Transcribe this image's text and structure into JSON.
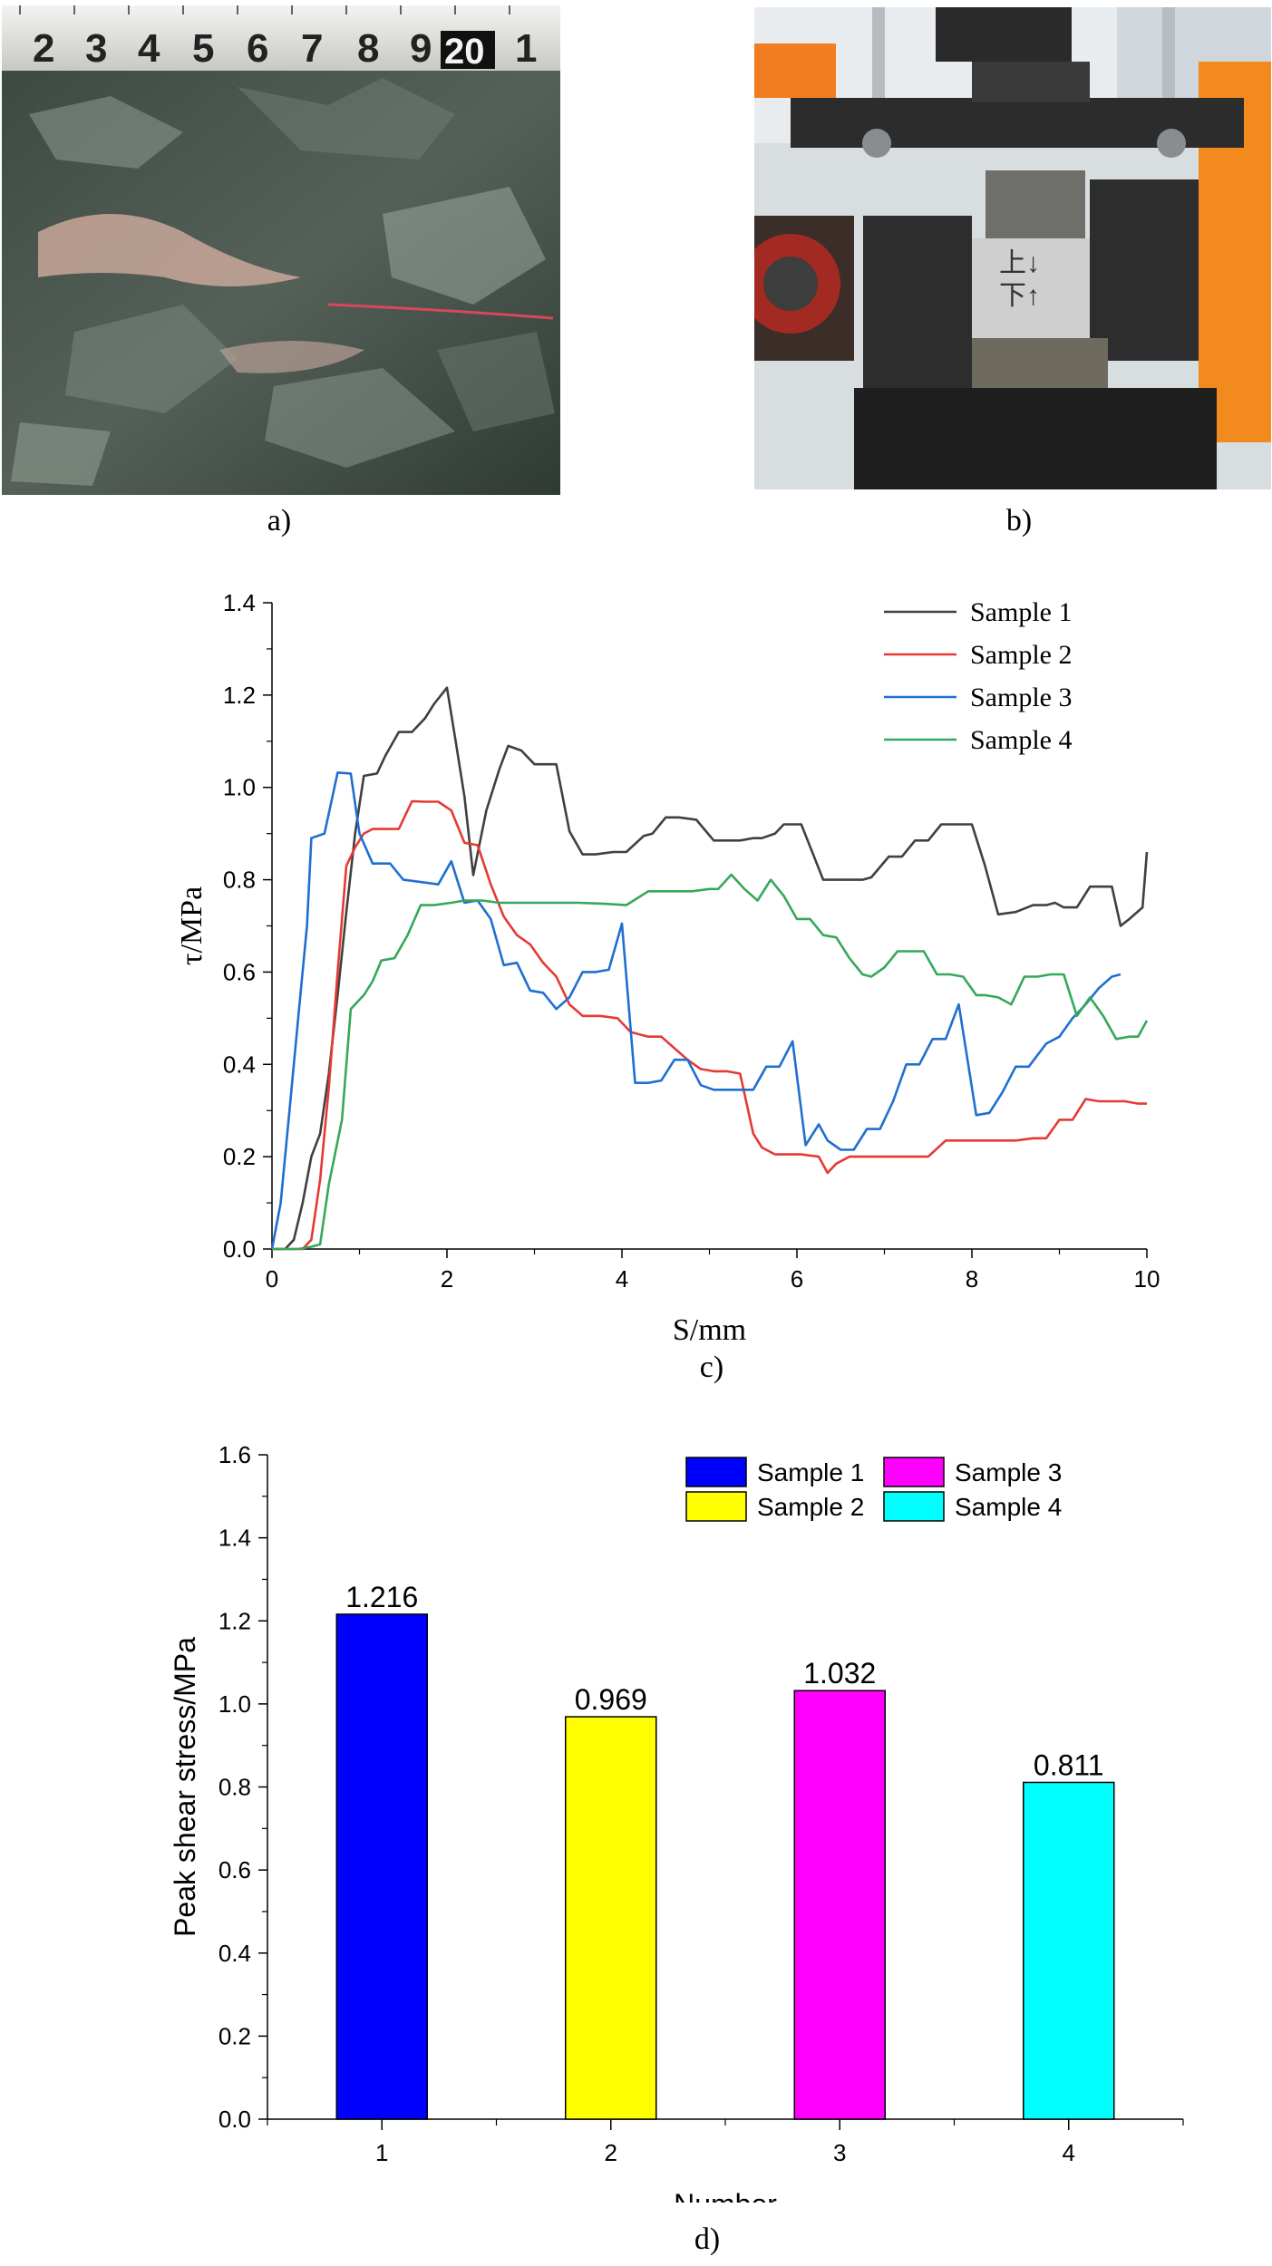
{
  "panels": {
    "a": {
      "caption": "a)",
      "ruler_numbers": [
        "2",
        "3",
        "4",
        "5",
        "6",
        "7",
        "8",
        "9",
        "20",
        "1"
      ]
    },
    "b": {
      "caption": "b)",
      "specimen_text": "上↓\n下↑"
    },
    "c": {
      "caption": "c)"
    },
    "d": {
      "caption": "d)"
    }
  },
  "chart_data": [
    {
      "id": "c",
      "type": "line",
      "xlabel": "S/mm",
      "ylabel": "τ/MPa",
      "xlim": [
        0,
        10
      ],
      "ylim": [
        0,
        1.4
      ],
      "xticks": [
        0,
        2,
        4,
        6,
        8,
        10
      ],
      "yticks": [
        0.0,
        0.2,
        0.4,
        0.6,
        0.8,
        1.0,
        1.2,
        1.4
      ],
      "legend": "top-right",
      "series": [
        {
          "name": "Sample 1",
          "color": "#404040",
          "x": [
            0,
            0.15,
            0.25,
            0.35,
            0.45,
            0.55,
            0.65,
            0.75,
            0.85,
            0.95,
            1.05,
            1.2,
            1.3,
            1.45,
            1.6,
            1.75,
            1.85,
            2.0,
            2.1,
            2.2,
            2.3,
            2.45,
            2.6,
            2.7,
            2.85,
            3.0,
            3.1,
            3.25,
            3.4,
            3.55,
            3.7,
            3.9,
            4.05,
            4.25,
            4.35,
            4.5,
            4.65,
            4.85,
            5.05,
            5.2,
            5.35,
            5.5,
            5.6,
            5.75,
            5.85,
            6.05,
            6.3,
            6.55,
            6.75,
            6.85,
            7.05,
            7.2,
            7.35,
            7.5,
            7.65,
            7.75,
            7.85,
            8.0,
            8.15,
            8.3,
            8.5,
            8.7,
            8.85,
            8.95,
            9.05,
            9.2,
            9.35,
            9.5,
            9.6,
            9.7,
            9.8,
            9.95,
            10.0
          ],
          "y": [
            0.0,
            0.0,
            0.02,
            0.1,
            0.2,
            0.25,
            0.38,
            0.55,
            0.73,
            0.9,
            1.025,
            1.03,
            1.07,
            1.12,
            1.12,
            1.15,
            1.18,
            1.216,
            1.1,
            0.98,
            0.81,
            0.95,
            1.04,
            1.09,
            1.08,
            1.05,
            1.05,
            1.05,
            0.905,
            0.855,
            0.855,
            0.86,
            0.86,
            0.895,
            0.9,
            0.935,
            0.935,
            0.93,
            0.885,
            0.885,
            0.885,
            0.89,
            0.89,
            0.9,
            0.92,
            0.92,
            0.8,
            0.8,
            0.8,
            0.805,
            0.85,
            0.85,
            0.885,
            0.885,
            0.92,
            0.92,
            0.92,
            0.92,
            0.83,
            0.725,
            0.73,
            0.745,
            0.745,
            0.75,
            0.74,
            0.74,
            0.785,
            0.785,
            0.785,
            0.7,
            0.715,
            0.74,
            0.86
          ]
        },
        {
          "name": "Sample 2",
          "color": "#e53a34",
          "x": [
            0,
            0.2,
            0.35,
            0.45,
            0.55,
            0.65,
            0.75,
            0.85,
            0.95,
            1.05,
            1.15,
            1.3,
            1.45,
            1.6,
            1.75,
            1.9,
            2.05,
            2.2,
            2.35,
            2.5,
            2.65,
            2.8,
            2.95,
            3.1,
            3.25,
            3.4,
            3.55,
            3.75,
            3.95,
            4.1,
            4.3,
            4.45,
            4.6,
            4.75,
            4.9,
            5.05,
            5.2,
            5.35,
            5.5,
            5.6,
            5.75,
            5.9,
            6.05,
            6.25,
            6.35,
            6.45,
            6.6,
            6.75,
            6.9,
            7.05,
            7.2,
            7.35,
            7.5,
            7.7,
            7.9,
            8.1,
            8.3,
            8.5,
            8.7,
            8.85,
            9.0,
            9.15,
            9.3,
            9.45,
            9.6,
            9.75,
            9.9,
            10.0
          ],
          "y": [
            0.0,
            0.0,
            0.0,
            0.02,
            0.15,
            0.35,
            0.6,
            0.83,
            0.87,
            0.9,
            0.91,
            0.91,
            0.91,
            0.97,
            0.969,
            0.969,
            0.95,
            0.88,
            0.875,
            0.79,
            0.72,
            0.68,
            0.66,
            0.62,
            0.59,
            0.53,
            0.505,
            0.505,
            0.5,
            0.47,
            0.46,
            0.46,
            0.435,
            0.41,
            0.39,
            0.385,
            0.385,
            0.38,
            0.25,
            0.22,
            0.205,
            0.205,
            0.205,
            0.2,
            0.165,
            0.185,
            0.2,
            0.2,
            0.2,
            0.2,
            0.2,
            0.2,
            0.2,
            0.235,
            0.235,
            0.235,
            0.235,
            0.235,
            0.24,
            0.24,
            0.28,
            0.28,
            0.325,
            0.32,
            0.32,
            0.32,
            0.315,
            0.315
          ]
        },
        {
          "name": "Sample 3",
          "color": "#1f6fd1",
          "x": [
            0,
            0.1,
            0.2,
            0.3,
            0.4,
            0.45,
            0.6,
            0.75,
            0.9,
            1.0,
            1.15,
            1.25,
            1.35,
            1.5,
            1.7,
            1.9,
            2.05,
            2.2,
            2.35,
            2.5,
            2.65,
            2.8,
            2.95,
            3.1,
            3.25,
            3.4,
            3.55,
            3.7,
            3.85,
            4.0,
            4.15,
            4.3,
            4.45,
            4.6,
            4.75,
            4.9,
            5.05,
            5.2,
            5.35,
            5.5,
            5.65,
            5.8,
            5.95,
            6.1,
            6.25,
            6.35,
            6.5,
            6.65,
            6.8,
            6.95,
            7.1,
            7.25,
            7.4,
            7.55,
            7.7,
            7.85,
            8.05,
            8.2,
            8.35,
            8.5,
            8.65,
            8.85,
            9.0,
            9.15,
            9.3,
            9.45,
            9.6,
            9.7
          ],
          "y": [
            0.0,
            0.1,
            0.3,
            0.5,
            0.7,
            0.89,
            0.9,
            1.032,
            1.03,
            0.9,
            0.835,
            0.835,
            0.835,
            0.8,
            0.795,
            0.79,
            0.84,
            0.75,
            0.755,
            0.715,
            0.615,
            0.62,
            0.56,
            0.555,
            0.52,
            0.545,
            0.6,
            0.6,
            0.605,
            0.705,
            0.36,
            0.36,
            0.365,
            0.41,
            0.41,
            0.355,
            0.345,
            0.345,
            0.345,
            0.345,
            0.395,
            0.395,
            0.45,
            0.225,
            0.27,
            0.235,
            0.215,
            0.215,
            0.26,
            0.26,
            0.32,
            0.4,
            0.4,
            0.455,
            0.455,
            0.53,
            0.29,
            0.295,
            0.34,
            0.395,
            0.395,
            0.445,
            0.46,
            0.5,
            0.53,
            0.565,
            0.59,
            0.595
          ]
        },
        {
          "name": "Sample 4",
          "color": "#36a85a",
          "x": [
            0,
            0.3,
            0.45,
            0.55,
            0.65,
            0.8,
            0.9,
            1.05,
            1.15,
            1.25,
            1.4,
            1.55,
            1.7,
            1.85,
            2.05,
            2.2,
            2.4,
            2.6,
            2.9,
            3.2,
            3.5,
            3.8,
            4.05,
            4.3,
            4.55,
            4.8,
            5.0,
            5.1,
            5.25,
            5.4,
            5.55,
            5.7,
            5.85,
            6.0,
            6.15,
            6.3,
            6.45,
            6.6,
            6.75,
            6.85,
            7.0,
            7.15,
            7.3,
            7.45,
            7.6,
            7.75,
            7.9,
            8.05,
            8.15,
            8.3,
            8.45,
            8.6,
            8.75,
            8.9,
            9.05,
            9.2,
            9.35,
            9.5,
            9.65,
            9.8,
            9.9,
            10.0
          ],
          "y": [
            0.0,
            0.0,
            0.005,
            0.01,
            0.14,
            0.28,
            0.52,
            0.55,
            0.58,
            0.625,
            0.63,
            0.68,
            0.745,
            0.745,
            0.75,
            0.755,
            0.755,
            0.75,
            0.75,
            0.75,
            0.75,
            0.748,
            0.745,
            0.775,
            0.775,
            0.775,
            0.78,
            0.78,
            0.811,
            0.78,
            0.755,
            0.8,
            0.765,
            0.715,
            0.715,
            0.68,
            0.675,
            0.63,
            0.595,
            0.59,
            0.61,
            0.645,
            0.645,
            0.645,
            0.595,
            0.595,
            0.59,
            0.55,
            0.55,
            0.545,
            0.53,
            0.59,
            0.59,
            0.595,
            0.595,
            0.505,
            0.545,
            0.505,
            0.455,
            0.46,
            0.46,
            0.495
          ]
        }
      ]
    },
    {
      "id": "d",
      "type": "bar",
      "xlabel": "Number",
      "ylabel": "Peak shear stress/MPa",
      "ylim": [
        0,
        1.6
      ],
      "yticks": [
        0.0,
        0.2,
        0.4,
        0.6,
        0.8,
        1.0,
        1.2,
        1.4,
        1.6
      ],
      "categories": [
        "1",
        "2",
        "3",
        "4"
      ],
      "values": [
        1.216,
        0.969,
        1.032,
        0.811
      ],
      "data_labels": [
        "1.216",
        "0.969",
        "1.032",
        "0.811"
      ],
      "series_names": [
        "Sample 1",
        "Sample 2",
        "Sample 3",
        "Sample 4"
      ],
      "colors": [
        "#0000ff",
        "#ffff00",
        "#ff00ff",
        "#00ffff"
      ],
      "legend": "top-right"
    }
  ]
}
